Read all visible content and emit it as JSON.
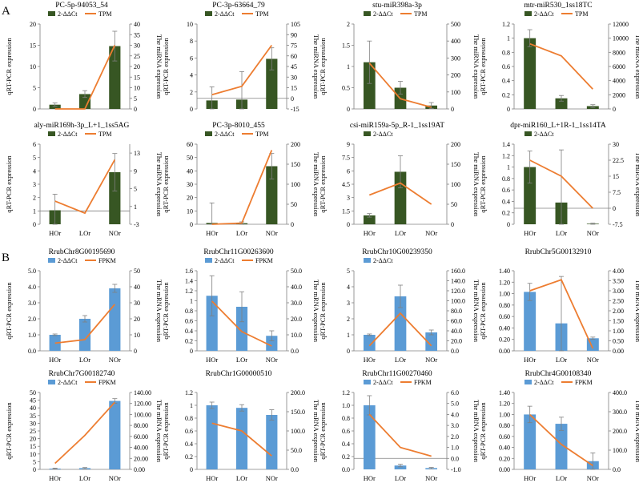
{
  "panel_labels": [
    "A",
    "B"
  ],
  "categories": [
    "HOr",
    "LOr",
    "NOr"
  ],
  "chart_data": [
    {
      "type": "bar",
      "panel": "A",
      "title": "PC-5p-94053_54",
      "ylabel": "qRT-PCR expression",
      "y2label": "The miRNA expression",
      "legend_bar": "2-ΔΔCt",
      "legend_line": "TPM",
      "show_cats": false,
      "left_ticks": [
        "0",
        "5",
        "10",
        "15",
        "20"
      ],
      "ylim": [
        0,
        20
      ],
      "right_ticks": [
        "0",
        "5",
        "10",
        "15",
        "20",
        "25",
        "30",
        "35",
        "40"
      ],
      "y2lim": [
        0,
        40
      ],
      "values": [
        1,
        3.5,
        14.8
      ],
      "errors": [
        0.4,
        0.8,
        3.5
      ],
      "line": [
        0,
        0,
        30
      ],
      "bar_color": "#375623",
      "line_color": "#ED7D31"
    },
    {
      "type": "bar",
      "panel": "A",
      "title": "PC-3p-63664_79",
      "ylabel": "qRT-PCR expression",
      "y2label": "The miRNA expression",
      "legend_bar": "2-ΔΔCt",
      "legend_line": "TPM",
      "show_cats": false,
      "left_ticks": [
        "0",
        "2",
        "4",
        "6",
        "8",
        "10"
      ],
      "ylim": [
        0,
        10
      ],
      "right_ticks": [
        "-15",
        "0",
        "15",
        "30",
        "45",
        "60",
        "75",
        "90",
        "105"
      ],
      "y2lim": [
        -15,
        105
      ],
      "values": [
        1,
        1.1,
        5.9
      ],
      "errors": [
        1.6,
        3.3,
        1.3
      ],
      "line": [
        5,
        17,
        75
      ],
      "bar_color": "#375623",
      "line_color": "#ED7D31"
    },
    {
      "type": "bar",
      "panel": "A",
      "title": "stu-miR398a-3p",
      "ylabel": "qRT-PCR expression",
      "y2label": "The miRNA expression",
      "legend_bar": "2-ΔΔCt",
      "legend_line": "TPM",
      "show_cats": false,
      "left_ticks": [
        "0",
        "0.5",
        "1",
        "1.5",
        "2"
      ],
      "ylim": [
        0,
        2
      ],
      "right_ticks": [
        "0",
        "100",
        "200",
        "300",
        "400",
        "500"
      ],
      "y2lim": [
        0,
        500
      ],
      "values": [
        1.1,
        0.5,
        0.08
      ],
      "errors": [
        0.5,
        0.15,
        0.07
      ],
      "line": [
        270,
        60,
        10
      ],
      "bar_color": "#375623",
      "line_color": "#ED7D31"
    },
    {
      "type": "bar",
      "panel": "A",
      "title": "mtr-miR530_1ss18TC",
      "ylabel": "qRT-PCR expression",
      "y2label": "The miRNA expression",
      "legend_bar": "2-ΔΔCt",
      "legend_line": "TPM",
      "show_cats": false,
      "left_ticks": [
        "0",
        "0.2",
        "0.4",
        "0.6",
        "0.8",
        "1",
        "1.2"
      ],
      "ylim": [
        0,
        1.2
      ],
      "right_ticks": [
        "0",
        "2000",
        "4000",
        "6000",
        "8000",
        "10000",
        "12000"
      ],
      "y2lim": [
        0,
        12000
      ],
      "values": [
        1,
        0.15,
        0.04
      ],
      "errors": [
        0.12,
        0.04,
        0.02
      ],
      "line": [
        9200,
        7500,
        2800
      ],
      "bar_color": "#375623",
      "line_color": "#ED7D31"
    },
    {
      "type": "bar",
      "panel": "A",
      "title": "aly-miR169h-3p_L+1_1ss5AG",
      "ylabel": "qRT-PCR expression",
      "y2label": "The miRNA expression",
      "legend_bar": "2-ΔΔCt",
      "legend_line": "TPM",
      "show_cats": true,
      "left_ticks": [
        "0",
        "1",
        "2",
        "3",
        "4",
        "5",
        "6"
      ],
      "ylim": [
        0,
        6
      ],
      "right_ticks": [
        "-3",
        "1",
        "5",
        "9",
        "13"
      ],
      "y2lim": [
        -3,
        15
      ],
      "values": [
        1.05,
        0,
        3.9
      ],
      "errors": [
        1.2,
        0,
        1.4
      ],
      "line": [
        2.2,
        -0.5,
        11.5
      ],
      "bar_color": "#375623",
      "line_color": "#ED7D31"
    },
    {
      "type": "bar",
      "panel": "A",
      "title": "PC-3p-8010_455",
      "ylabel": "qRT-PCR expression",
      "y2label": "The miRNA expression",
      "legend_bar": "2-ΔΔCt",
      "legend_line": "TPM",
      "show_cats": true,
      "left_ticks": [
        "0",
        "10",
        "20",
        "30",
        "40",
        "50",
        "60"
      ],
      "ylim": [
        0,
        60
      ],
      "right_ticks": [
        "0",
        "50",
        "100",
        "150",
        "200"
      ],
      "y2lim": [
        0,
        200
      ],
      "values": [
        1,
        0.8,
        43.5
      ],
      "errors": [
        15,
        1,
        9.5
      ],
      "line": [
        0,
        3,
        185
      ],
      "bar_color": "#375623",
      "line_color": "#ED7D31"
    },
    {
      "type": "bar",
      "panel": "A",
      "title": "csi-miR159a-5p_R-1_1ss19AT",
      "ylabel": "qRT-PCR expression",
      "y2label": "The miRNA expression",
      "legend_bar": "2-ΔΔCt",
      "legend_line": "",
      "show_cats": true,
      "left_ticks": [
        "0",
        "1.5",
        "3",
        "4.5",
        "6",
        "7.5",
        "9"
      ],
      "ylim": [
        0,
        9
      ],
      "right_ticks": [
        "0",
        "50",
        "100",
        "150",
        "200"
      ],
      "y2lim": [
        0,
        200
      ],
      "values": [
        1,
        5.9,
        0
      ],
      "errors": [
        0.2,
        1.8,
        0
      ],
      "line": [
        73,
        103,
        50
      ],
      "bar_color": "#375623",
      "line_color": "#ED7D31"
    },
    {
      "type": "bar",
      "panel": "A",
      "title": "dpr-miR160_L+1R-1_1ss14TA",
      "ylabel": "qRT-PCR expression",
      "y2label": "The miRNA expression",
      "legend_bar": "2-ΔΔCt",
      "legend_line": "",
      "show_cats": true,
      "left_ticks": [
        "0",
        "0.2",
        "0.4",
        "0.6",
        "0.8",
        "1",
        "1.2",
        "1.4"
      ],
      "ylim": [
        0,
        1.4
      ],
      "right_ticks": [
        "-7.5",
        "0",
        "7.5",
        "15",
        "22.5",
        "30"
      ],
      "y2lim": [
        -7.5,
        30
      ],
      "values": [
        1,
        0.38,
        0.01
      ],
      "errors": [
        0.28,
        0.92,
        0.01
      ],
      "line": [
        22.5,
        15,
        0
      ],
      "bar_color": "#375623",
      "line_color": "#ED7D31"
    },
    {
      "type": "bar",
      "panel": "B",
      "title": "RrubChr8G00195690",
      "ylabel": "qRT-PCR expression",
      "y2label": "The mRNA expression",
      "legend_bar": "2-ΔΔCt",
      "legend_line": "FPKM",
      "show_cats": true,
      "left_ticks": [
        "0.0",
        "1.0",
        "2.0",
        "3.0",
        "4.0",
        "5.0"
      ],
      "ylim": [
        0,
        5
      ],
      "right_ticks": [
        "0",
        "10",
        "20",
        "30",
        "40",
        "50"
      ],
      "y2lim": [
        0,
        50
      ],
      "values": [
        1,
        2,
        3.9
      ],
      "errors": [
        0.05,
        0.2,
        0.25
      ],
      "line": [
        4.8,
        7,
        29
      ],
      "bar_color": "#5B9BD5",
      "line_color": "#ED7D31"
    },
    {
      "type": "bar",
      "panel": "B",
      "title": "RrubChr11G00263600",
      "ylabel": "qRT-PCR expression",
      "y2label": "The mRNA expression",
      "legend_bar": "2-ΔΔCt",
      "legend_line": "FPKM",
      "show_cats": true,
      "left_ticks": [
        "0",
        "0.2",
        "0.4",
        "0.6",
        "0.8",
        "1",
        "1.2",
        "1.4",
        "1.6"
      ],
      "ylim": [
        0,
        1.6
      ],
      "right_ticks": [
        "0.0",
        "10.0",
        "20.0",
        "30.0",
        "40.0",
        "50.0"
      ],
      "y2lim": [
        0,
        50
      ],
      "values": [
        1.1,
        0.88,
        0.3
      ],
      "errors": [
        0.4,
        0.3,
        0.1
      ],
      "line": [
        31,
        12,
        3
      ],
      "bar_color": "#5B9BD5",
      "line_color": "#ED7D31"
    },
    {
      "type": "bar",
      "panel": "B",
      "title": "RrubChr10G00239350",
      "ylabel": "qRT-PCR expression",
      "y2label": "The mRNA expression",
      "legend_bar": "2-ΔΔCt",
      "legend_line": "",
      "show_cats": true,
      "left_ticks": [
        "0",
        "1",
        "2",
        "3",
        "4",
        "5"
      ],
      "ylim": [
        0,
        5
      ],
      "right_ticks": [
        "0.0",
        "20.0",
        "40.0",
        "60.0",
        "80.0",
        "100.0",
        "120.0",
        "140.0",
        "160.0"
      ],
      "y2lim": [
        0,
        160
      ],
      "values": [
        1,
        3.4,
        1.15
      ],
      "errors": [
        0.05,
        0.7,
        0.15
      ],
      "line": [
        10,
        75,
        10
      ],
      "bar_color": "#5B9BD5",
      "line_color": "#ED7D31"
    },
    {
      "type": "bar",
      "panel": "B",
      "title": "RrubChr5G00132910",
      "ylabel": "qRT-PCR expression",
      "y2label": "The mRNA expression",
      "legend_bar": "",
      "legend_line": "",
      "show_cats": true,
      "left_ticks": [
        "0.00",
        "0.20",
        "0.40",
        "0.60",
        "0.80",
        "1.00",
        "1.20",
        "1.40"
      ],
      "ylim": [
        0,
        1.4
      ],
      "right_ticks": [
        "0.00",
        "0.50",
        "1.00",
        "1.50",
        "2.00",
        "2.50",
        "3.00",
        "3.50",
        "4.00"
      ],
      "y2lim": [
        0,
        4
      ],
      "values": [
        1.03,
        0.48,
        0.22
      ],
      "errors": [
        0.15,
        0.82,
        0.02
      ],
      "line": [
        3,
        3.55,
        0.12
      ],
      "bar_color": "#5B9BD5",
      "line_color": "#ED7D31"
    },
    {
      "type": "bar",
      "panel": "B",
      "title": "RrubChr7G00182740",
      "ylabel": "qRT-PCR expression",
      "y2label": "The mRNA expression",
      "legend_bar": "2-ΔΔCt",
      "legend_line": "FPKM",
      "show_cats": true,
      "left_ticks": [
        "0",
        "5",
        "10",
        "15",
        "20",
        "25",
        "30",
        "35",
        "40",
        "45",
        "50"
      ],
      "ylim": [
        0,
        50
      ],
      "right_ticks": [
        "0.00",
        "20.00",
        "40.00",
        "60.00",
        "80.00",
        "100.00",
        "120.00",
        "140.00"
      ],
      "y2lim": [
        0,
        140
      ],
      "values": [
        0.5,
        0.8,
        44.5
      ],
      "errors": [
        0.3,
        0.4,
        1.5
      ],
      "line": [
        11,
        62,
        122
      ],
      "bar_color": "#5B9BD5",
      "line_color": "#ED7D31"
    },
    {
      "type": "bar",
      "panel": "B",
      "title": "RrubChr1G00000510",
      "ylabel": "qRT-PCR expression",
      "y2label": "The mRNA expression",
      "legend_bar": "",
      "legend_line": "",
      "show_cats": true,
      "left_ticks": [
        "0",
        "0.2",
        "0.4",
        "0.6",
        "0.8",
        "1",
        "1.2"
      ],
      "ylim": [
        0,
        1.2
      ],
      "right_ticks": [
        "0.0",
        "50.0",
        "100.0",
        "150.0",
        "200.0"
      ],
      "y2lim": [
        0,
        200
      ],
      "values": [
        1,
        0.96,
        0.85
      ],
      "errors": [
        0.05,
        0.05,
        0.08
      ],
      "line": [
        120,
        100,
        35
      ],
      "bar_color": "#5B9BD5",
      "line_color": "#ED7D31"
    },
    {
      "type": "bar",
      "panel": "B",
      "title": "RrubChr11G00270460",
      "ylabel": "qRT-PCR expression",
      "y2label": "The mRNA expression",
      "legend_bar": "2-ΔΔCt",
      "legend_line": "FPKM",
      "show_cats": true,
      "left_ticks": [
        "0.0",
        "0.2",
        "0.4",
        "0.6",
        "0.8",
        "1.0",
        "1.2"
      ],
      "ylim": [
        0,
        1.2
      ],
      "right_ticks": [
        "-1.0",
        "0.0",
        "1.0",
        "2.0",
        "3.0",
        "4.0",
        "5.0",
        "6.0"
      ],
      "y2lim": [
        -1,
        6
      ],
      "values": [
        1,
        0.06,
        0.02
      ],
      "errors": [
        0.15,
        0.02,
        0.01
      ],
      "line": [
        4,
        1,
        0.2
      ],
      "bar_color": "#5B9BD5",
      "line_color": "#ED7D31"
    },
    {
      "type": "bar",
      "panel": "B",
      "title": "RrubChr4G00108340",
      "ylabel": "qRT-PCR expression",
      "y2label": "The mRNA expression",
      "legend_bar": "2-ΔΔCt",
      "legend_line": "FPKM",
      "show_cats": true,
      "left_ticks": [
        "0.00",
        "0.20",
        "0.40",
        "0.60",
        "0.80",
        "1.00",
        "1.20",
        "1.40"
      ],
      "ylim": [
        0,
        1.4
      ],
      "right_ticks": [
        "0.0",
        "100.0",
        "200.0",
        "300.0",
        "400.0"
      ],
      "y2lim": [
        0,
        400
      ],
      "values": [
        1,
        0.83,
        0.15
      ],
      "errors": [
        0.15,
        0.12,
        0.15
      ],
      "line": [
        285,
        130,
        20
      ],
      "bar_color": "#5B9BD5",
      "line_color": "#ED7D31"
    }
  ]
}
